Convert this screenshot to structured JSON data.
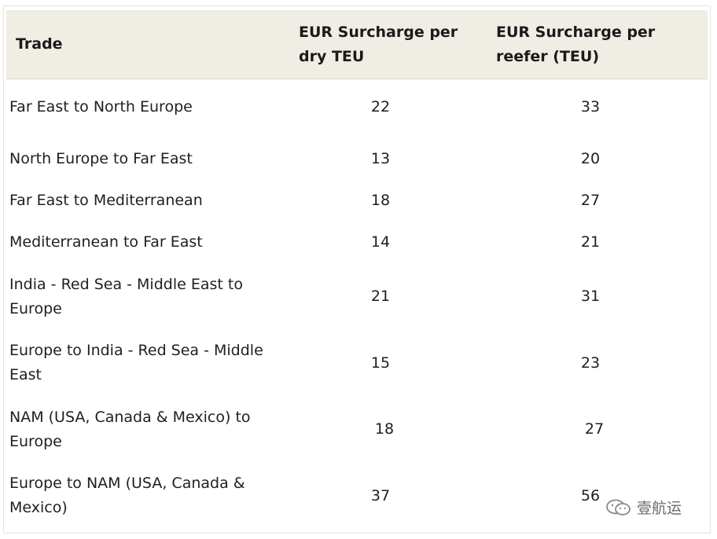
{
  "table": {
    "headers": {
      "trade": "Trade",
      "dry": "EUR Surcharge per dry TEU",
      "reefer": "EUR Surcharge per reefer (TEU)"
    },
    "rows": [
      {
        "trade": "Far East to North Europe",
        "dry": "22",
        "reefer": "33"
      },
      {
        "trade": "North Europe to Far East",
        "dry": "13",
        "reefer": "20"
      },
      {
        "trade": "Far East to Mediterranean",
        "dry": "18",
        "reefer": "27"
      },
      {
        "trade": "Mediterranean to Far East",
        "dry": "14",
        "reefer": "21"
      },
      {
        "trade": "India - Red Sea - Middle East to Europe",
        "dry": "21",
        "reefer": "31"
      },
      {
        "trade": "Europe to India - Red Sea - Middle East",
        "dry": "15",
        "reefer": "23"
      },
      {
        "trade": "NAM (USA, Canada & Mexico) to Europe",
        "dry": "18",
        "reefer": "27"
      },
      {
        "trade": "Europe to NAM (USA, Canada & Mexico)",
        "dry": "37",
        "reefer": "56"
      }
    ]
  },
  "watermark": {
    "text": "壹航运",
    "icon": "wechat-icon"
  }
}
